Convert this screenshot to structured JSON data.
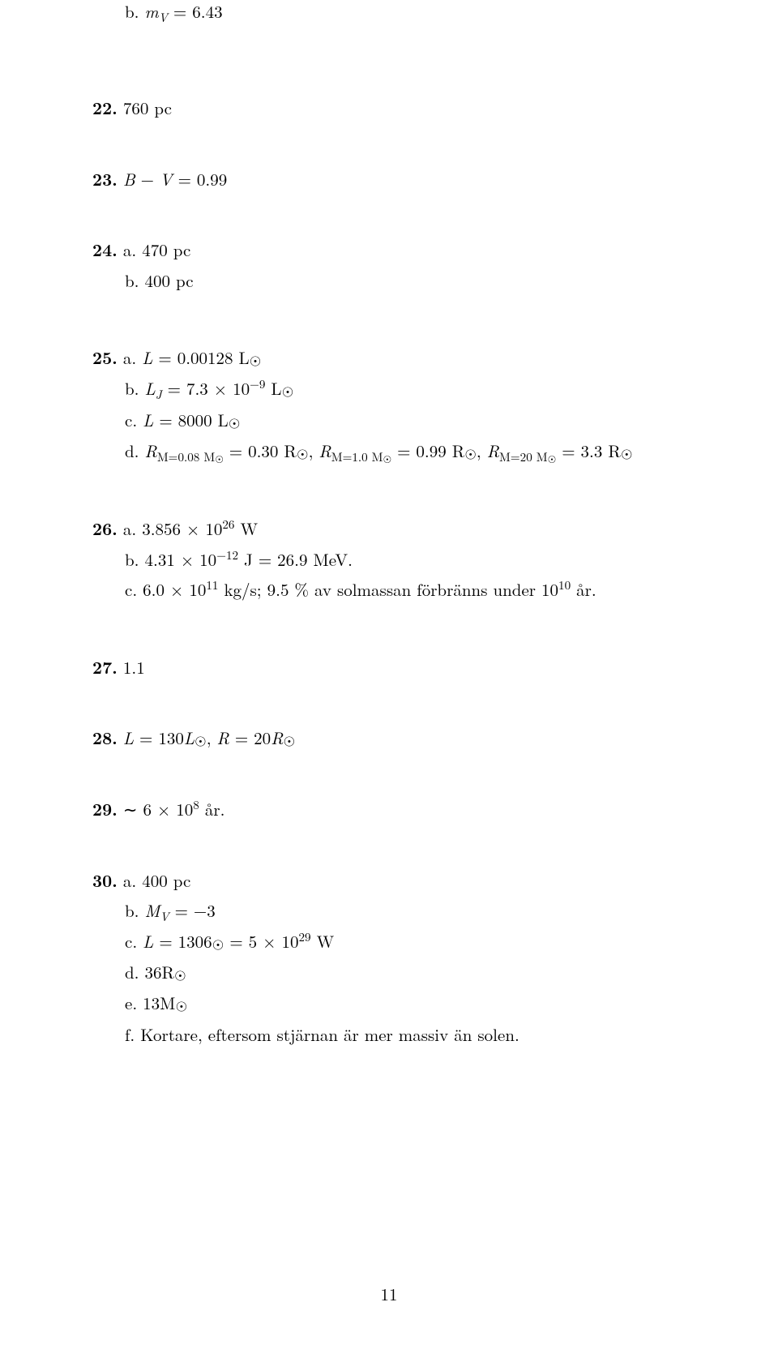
{
  "page_number": "11",
  "entries": [
    {
      "kind": "sub",
      "label": "b.",
      "html": "<span class='it'>m</span><sub><span class='it'>V</span></sub> = 6.43"
    },
    {
      "kind": "gap",
      "size": "xlarge"
    },
    {
      "kind": "main",
      "num": "22.",
      "html": "760 pc"
    },
    {
      "kind": "gap",
      "size": "large"
    },
    {
      "kind": "main",
      "num": "23.",
      "html": "<span class='it'>B</span> − <span class='it'>V</span> = 0.99"
    },
    {
      "kind": "gap",
      "size": "large"
    },
    {
      "kind": "main",
      "num": "24.",
      "label": "a.",
      "html": "470 pc"
    },
    {
      "kind": "sub",
      "label": "b.",
      "html": "400 pc"
    },
    {
      "kind": "gap",
      "size": "large"
    },
    {
      "kind": "main",
      "num": "25.",
      "label": "a.",
      "html": "<span class='it'>L</span> = 0.00128 L<span class='sun'>☉</span>"
    },
    {
      "kind": "sub",
      "label": "b.",
      "html": "<span class='it'>L</span><sub><span class='it'>J</span></sub> = 7.3 × 10<sup>−9</sup> L<span class='sun'>☉</span>"
    },
    {
      "kind": "sub",
      "label": "c.",
      "html": "<span class='it'>L</span> = 8000 L<span class='sun'>☉</span>"
    },
    {
      "kind": "sub",
      "label": "d.",
      "html": "<span class='it'>R</span><sub>M=0.08 M<span class='sun'>☉</span></sub> = 0.30 R<span class='sun'>☉</span>, <span class='it'>R</span><sub>M=1.0 M<span class='sun'>☉</span></sub> = 0.99 R<span class='sun'>☉</span>, <span class='it'>R</span><sub>M=20 M<span class='sun'>☉</span></sub> = 3.3 R<span class='sun'>☉</span>"
    },
    {
      "kind": "gap",
      "size": "large"
    },
    {
      "kind": "main",
      "num": "26.",
      "label": "a.",
      "html": "3.856 × 10<sup>26</sup> W"
    },
    {
      "kind": "sub",
      "label": "b.",
      "html": "4.31 × 10<sup>−12</sup> J = 26.9 MeV."
    },
    {
      "kind": "sub",
      "label": "c.",
      "html": "6.0 × 10<sup>11</sup> kg/s; 9.5 % av solmassan förbränns under 10<sup>10</sup> år."
    },
    {
      "kind": "gap",
      "size": "large"
    },
    {
      "kind": "main",
      "num": "27.",
      "html": "1.1"
    },
    {
      "kind": "gap",
      "size": "large"
    },
    {
      "kind": "main",
      "num": "28.",
      "html": "<span class='it'>L</span> = 130<span class='it'>L</span><span class='sun'>☉</span>, <span class='it'>R</span> = 20<span class='it'>R</span><span class='sun'>☉</span>"
    },
    {
      "kind": "gap",
      "size": "large"
    },
    {
      "kind": "main",
      "num": "29.",
      "html": "∼ 6 × 10<sup>8</sup> år."
    },
    {
      "kind": "gap",
      "size": "large"
    },
    {
      "kind": "main",
      "num": "30.",
      "label": "a.",
      "html": "400 pc"
    },
    {
      "kind": "sub",
      "label": "b.",
      "html": "<span class='it'>M</span><sub><span class='it'>V</span></sub> = −3"
    },
    {
      "kind": "sub",
      "label": "c.",
      "html": "<span class='it'>L</span> = 1306<span class='sun'>☉</span> = 5 × 10<sup>29</sup> W"
    },
    {
      "kind": "sub",
      "label": "d.",
      "html": "36R<span class='sun'>☉</span>"
    },
    {
      "kind": "sub",
      "label": "e.",
      "html": "13M<span class='sun'>☉</span>"
    },
    {
      "kind": "sub",
      "label": "f.",
      "html": "Kortare, eftersom stjärnan är mer massiv än solen."
    }
  ]
}
